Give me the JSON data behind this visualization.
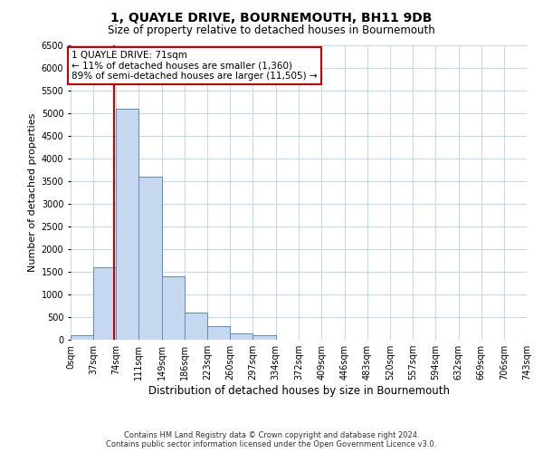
{
  "title": "1, QUAYLE DRIVE, BOURNEMOUTH, BH11 9DB",
  "subtitle": "Size of property relative to detached houses in Bournemouth",
  "xlabel": "Distribution of detached houses by size in Bournemouth",
  "ylabel": "Number of detached properties",
  "footer_line1": "Contains HM Land Registry data © Crown copyright and database right 2024.",
  "footer_line2": "Contains public sector information licensed under the Open Government Licence v3.0.",
  "property_size": 71,
  "annotation_line1": "1 QUAYLE DRIVE: 71sqm",
  "annotation_line2": "← 11% of detached houses are smaller (1,360)",
  "annotation_line3": "89% of semi-detached houses are larger (11,505) →",
  "bar_edges": [
    0,
    37,
    74,
    111,
    149,
    186,
    223,
    260,
    297,
    334,
    372,
    409,
    446,
    483,
    520,
    557,
    594,
    632,
    669,
    706,
    743
  ],
  "bar_heights": [
    100,
    1600,
    5100,
    3600,
    1400,
    600,
    300,
    150,
    100,
    0,
    0,
    0,
    0,
    0,
    0,
    0,
    0,
    0,
    0,
    0
  ],
  "bar_color": "#c5d8f0",
  "bar_edge_color": "#5b8db8",
  "red_line_color": "#cc0000",
  "ylim": [
    0,
    6500
  ],
  "yticks": [
    0,
    500,
    1000,
    1500,
    2000,
    2500,
    3000,
    3500,
    4000,
    4500,
    5000,
    5500,
    6000,
    6500
  ],
  "tick_labels": [
    "0sqm",
    "37sqm",
    "74sqm",
    "111sqm",
    "149sqm",
    "186sqm",
    "223sqm",
    "260sqm",
    "297sqm",
    "334sqm",
    "372sqm",
    "409sqm",
    "446sqm",
    "483sqm",
    "520sqm",
    "557sqm",
    "594sqm",
    "632sqm",
    "669sqm",
    "706sqm",
    "743sqm"
  ],
  "bg_color": "#ffffff",
  "grid_color": "#c8d8e8",
  "annotation_box_color": "#ffffff",
  "annotation_box_edge": "#cc0000",
  "title_fontsize": 10,
  "subtitle_fontsize": 8.5,
  "ylabel_fontsize": 8,
  "xlabel_fontsize": 8.5,
  "tick_fontsize": 7,
  "footer_fontsize": 6,
  "annotation_fontsize": 7.5
}
